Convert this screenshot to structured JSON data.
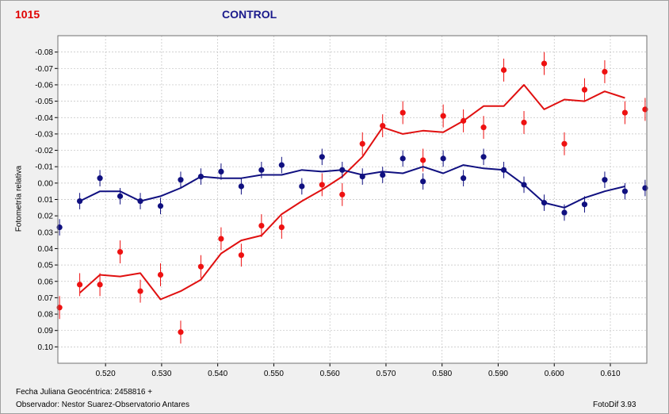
{
  "header": {
    "star_id": "1015",
    "title": "CONTROL"
  },
  "footer": {
    "jd_label": "Fecha Juliana Geocéntrica: 2458816 +",
    "observer": "Observador: Nestor Suarez-Observatorio Antares",
    "software": "FotoDif 3.93"
  },
  "colors": {
    "variable": "#ee1111",
    "variable_line": "#e01010",
    "check": "#101080",
    "plot_bg": "#ffffff",
    "grid": "#c0c0c0"
  },
  "chart_data": {
    "type": "scatter",
    "ylabel": "Fotometría relativa",
    "xlabel": "",
    "xlim": [
      0.5115,
      0.6165
    ],
    "ylim": [
      0.11,
      -0.09
    ],
    "y_inverted": true,
    "grid": true,
    "xticks": [
      0.52,
      0.53,
      0.54,
      0.55,
      0.56,
      0.57,
      0.58,
      0.59,
      0.6,
      0.61
    ],
    "xtick_labels": [
      "0.520",
      "0.530",
      "0.540",
      "0.550",
      "0.560",
      "0.570",
      "0.580",
      "0.590",
      "0.600",
      "0.610"
    ],
    "yticks": [
      -0.08,
      -0.07,
      -0.06,
      -0.05,
      -0.04,
      -0.03,
      -0.02,
      -0.01,
      0.0,
      0.01,
      0.02,
      0.03,
      0.04,
      0.05,
      0.06,
      0.07,
      0.08,
      0.09,
      0.1
    ],
    "ytick_labels": [
      "-0.08",
      "-0.07",
      "-0.06",
      "-0.05",
      "-0.04",
      "-0.03",
      "-0.02",
      "-0.01",
      "0.00",
      "0.01",
      "0.02",
      "0.03",
      "0.04",
      "0.05",
      "0.06",
      "0.07",
      "0.08",
      "0.09",
      "0.10"
    ],
    "series": [
      {
        "key": "red",
        "x": [
          0.5118,
          0.5154,
          0.519,
          0.5226,
          0.5262,
          0.5298,
          0.5334,
          0.537,
          0.5406,
          0.5442,
          0.5478,
          0.5514,
          0.555,
          0.5586,
          0.5622,
          0.5658,
          0.5694,
          0.573,
          0.5766,
          0.5802,
          0.5838,
          0.5874,
          0.591,
          0.5946,
          0.5982,
          0.6018,
          0.6054,
          0.609,
          0.6126,
          0.6162
        ],
        "y": [
          0.076,
          0.062,
          0.062,
          0.042,
          0.066,
          0.056,
          0.091,
          0.051,
          0.034,
          0.044,
          0.026,
          0.027,
          null,
          0.001,
          0.007,
          -0.024,
          -0.035,
          -0.043,
          -0.014,
          -0.041,
          -0.038,
          -0.034,
          -0.069,
          -0.037,
          -0.073,
          -0.024,
          -0.057,
          -0.068,
          -0.043,
          -0.045
        ],
        "err": 0.007,
        "fit_x": [
          0.5154,
          0.519,
          0.5226,
          0.5262,
          0.5298,
          0.5334,
          0.537,
          0.5406,
          0.5442,
          0.5478,
          0.5514,
          0.555,
          0.5586,
          0.5622,
          0.5658,
          0.5694,
          0.573,
          0.5766,
          0.5802,
          0.5838,
          0.5874,
          0.591,
          0.5946,
          0.5982,
          0.6018,
          0.6054,
          0.609,
          0.6126
        ],
        "fit_y": [
          0.067,
          0.056,
          0.057,
          0.055,
          0.071,
          0.066,
          0.059,
          0.043,
          0.035,
          0.032,
          0.019,
          0.011,
          0.004,
          -0.004,
          -0.016,
          -0.034,
          -0.03,
          -0.032,
          -0.031,
          -0.038,
          -0.047,
          -0.047,
          -0.06,
          -0.045,
          -0.051,
          -0.05,
          -0.056,
          -0.052
        ]
      },
      {
        "key": "blue",
        "x": [
          0.5118,
          0.5154,
          0.519,
          0.5226,
          0.5262,
          0.5298,
          0.5334,
          0.537,
          0.5406,
          0.5442,
          0.5478,
          0.5514,
          0.555,
          0.5586,
          0.5622,
          0.5658,
          0.5694,
          0.573,
          0.5766,
          0.5802,
          0.5838,
          0.5874,
          0.591,
          0.5946,
          0.5982,
          0.6018,
          0.6054,
          0.609,
          0.6126,
          0.6162
        ],
        "y": [
          0.027,
          0.011,
          -0.003,
          0.008,
          0.011,
          0.014,
          -0.002,
          -0.004,
          -0.007,
          0.002,
          -0.008,
          -0.011,
          0.002,
          -0.016,
          -0.008,
          -0.004,
          -0.005,
          -0.015,
          -0.001,
          -0.015,
          -0.003,
          -0.016,
          -0.008,
          0.001,
          0.012,
          0.018,
          0.013,
          -0.002,
          0.005,
          0.003
        ],
        "err": 0.005,
        "fit_x": [
          0.5154,
          0.519,
          0.5226,
          0.5262,
          0.5298,
          0.5334,
          0.537,
          0.5406,
          0.5442,
          0.5478,
          0.5514,
          0.555,
          0.5586,
          0.5622,
          0.5658,
          0.5694,
          0.573,
          0.5766,
          0.5802,
          0.5838,
          0.5874,
          0.591,
          0.5946,
          0.5982,
          0.6018,
          0.6054,
          0.609,
          0.6126
        ],
        "fit_y": [
          0.011,
          0.005,
          0.005,
          0.011,
          0.008,
          0.003,
          -0.004,
          -0.003,
          -0.003,
          -0.005,
          -0.005,
          -0.008,
          -0.007,
          -0.008,
          -0.005,
          -0.007,
          -0.006,
          -0.01,
          -0.006,
          -0.011,
          -0.009,
          -0.008,
          0.001,
          0.012,
          0.015,
          0.009,
          0.005,
          0.002
        ]
      }
    ]
  }
}
